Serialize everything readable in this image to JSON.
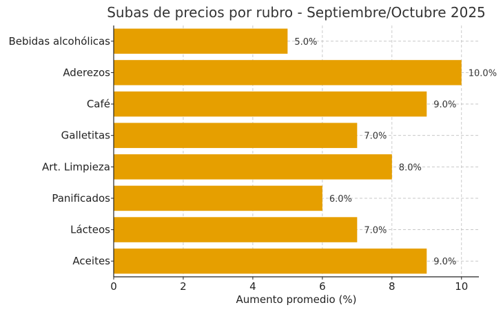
{
  "chart_data": {
    "type": "bar",
    "orientation": "horizontal",
    "title": "Subas de precios por rubro - Septiembre/Octubre 2025",
    "xlabel": "Aumento promedio (%)",
    "ylabel": "",
    "categories": [
      "Bebidas alcohólicas",
      "Aderezos",
      "Café",
      "Galletitas",
      "Art. Limpieza",
      "Panificados",
      "Lácteos",
      "Aceites"
    ],
    "values": [
      5.0,
      10.0,
      9.0,
      7.0,
      8.0,
      6.0,
      7.0,
      9.0
    ],
    "data_labels": [
      "5.0%",
      "10.0%",
      "9.0%",
      "7.0%",
      "8.0%",
      "6.0%",
      "7.0%",
      "9.0%"
    ],
    "xlim": [
      0,
      10.5
    ],
    "xticks": [
      0,
      2,
      4,
      6,
      8,
      10
    ],
    "xtick_labels": [
      "0",
      "2",
      "4",
      "6",
      "8",
      "10"
    ],
    "grid": true,
    "bar_color": "#E69F00"
  }
}
